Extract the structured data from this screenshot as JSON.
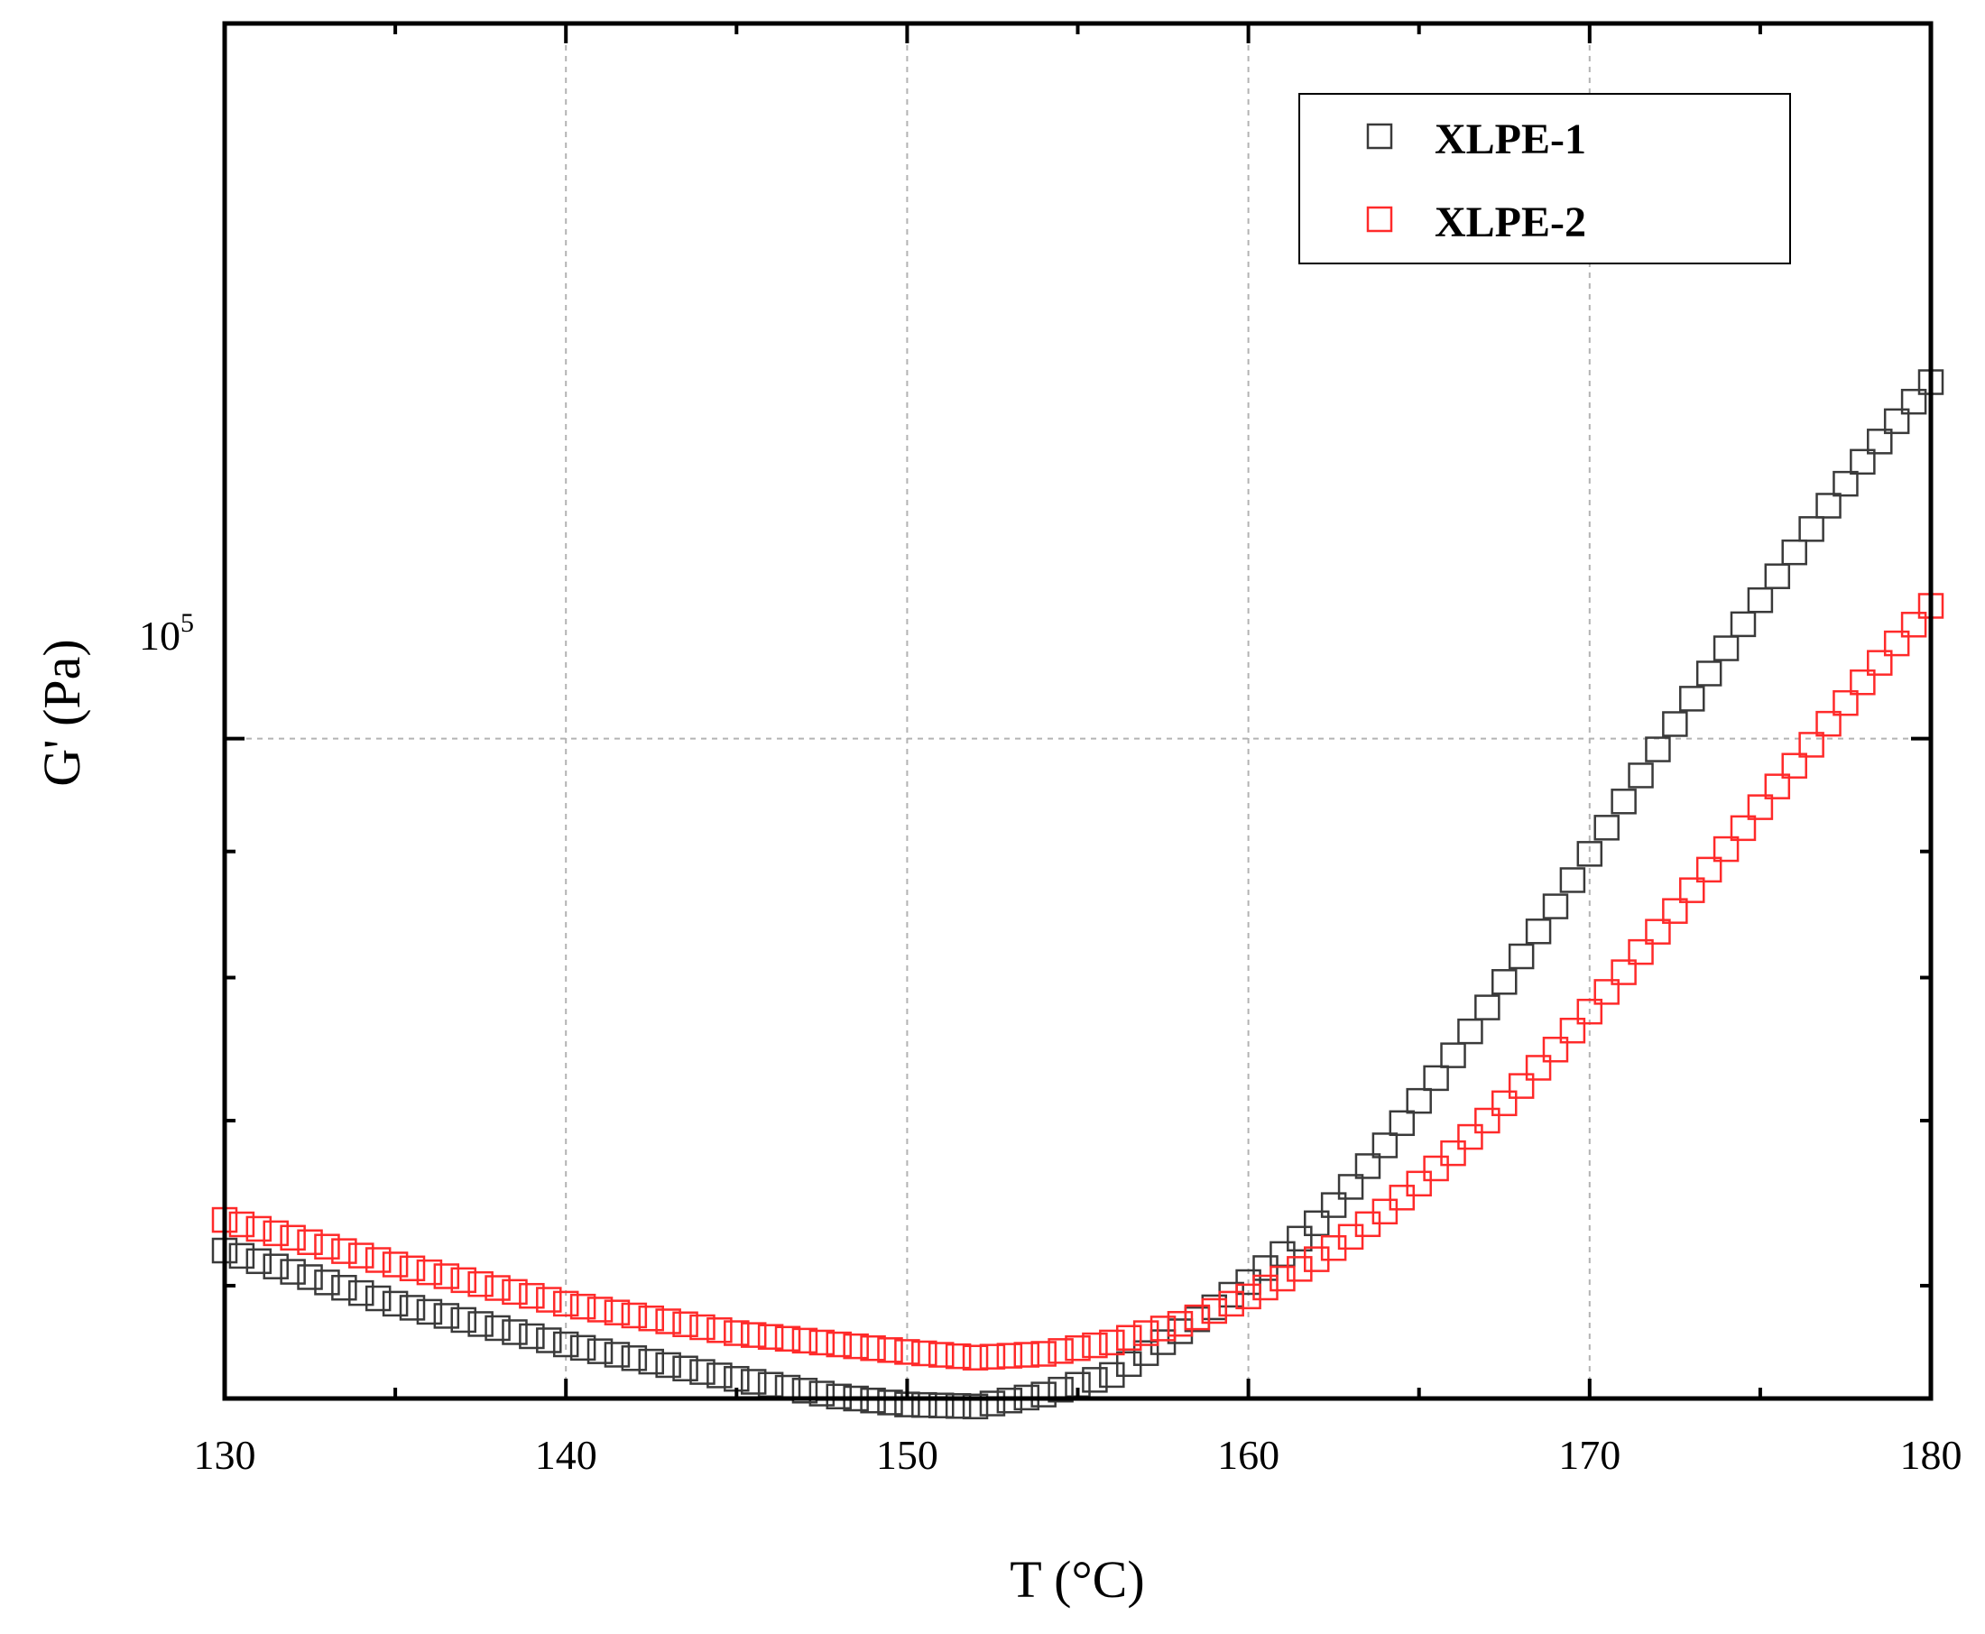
{
  "chart_data": {
    "type": "scatter",
    "title": "",
    "xlabel": "T (°C)",
    "ylabel": "G' (Pa)",
    "xlim": [
      130,
      180
    ],
    "ylim": [
      54000,
      195000
    ],
    "yscale": "log",
    "x_ticks": [
      "130",
      "140",
      "150",
      "160",
      "170",
      "180"
    ],
    "y_tick_label": {
      "base": "10",
      "exponent": "5"
    },
    "grid": true,
    "legend_position": "top-right",
    "series": [
      {
        "name": "XLPE-1",
        "color": "#3a3a3a",
        "marker": "open-square",
        "points": [
          [
            130,
            62000
          ],
          [
            135,
            59000
          ],
          [
            140,
            56800
          ],
          [
            145,
            55000
          ],
          [
            148,
            54100
          ],
          [
            150,
            53700
          ],
          [
            152,
            53600
          ],
          [
            154,
            54200
          ],
          [
            156,
            55200
          ],
          [
            158,
            57500
          ],
          [
            159,
            58800
          ],
          [
            160,
            60200
          ],
          [
            161,
            61800
          ],
          [
            162,
            63600
          ],
          [
            163,
            65800
          ],
          [
            164,
            68400
          ],
          [
            165,
            71300
          ],
          [
            166,
            74400
          ],
          [
            167,
            77800
          ],
          [
            168,
            81600
          ],
          [
            169,
            85500
          ],
          [
            170,
            89800
          ],
          [
            171,
            94300
          ],
          [
            172,
            99000
          ],
          [
            173,
            103800
          ],
          [
            174,
            108800
          ],
          [
            175,
            113800
          ],
          [
            176,
            119000
          ],
          [
            177,
            124300
          ],
          [
            178,
            129500
          ],
          [
            179,
            134500
          ],
          [
            180,
            139500
          ]
        ]
      },
      {
        "name": "XLPE-2",
        "color": "#ff2a2a",
        "marker": "open-square",
        "points": [
          [
            130,
            63800
          ],
          [
            135,
            61200
          ],
          [
            140,
            59000
          ],
          [
            145,
            57400
          ],
          [
            150,
            56400
          ],
          [
            152,
            56100
          ],
          [
            154,
            56300
          ],
          [
            156,
            56900
          ],
          [
            158,
            57900
          ],
          [
            159,
            58600
          ],
          [
            160,
            59400
          ],
          [
            161,
            60400
          ],
          [
            162,
            61500
          ],
          [
            163,
            62800
          ],
          [
            164,
            64300
          ],
          [
            165,
            66000
          ],
          [
            166,
            67900
          ],
          [
            167,
            70000
          ],
          [
            168,
            72300
          ],
          [
            169,
            74800
          ],
          [
            170,
            77500
          ],
          [
            171,
            80400
          ],
          [
            172,
            83500
          ],
          [
            173,
            86800
          ],
          [
            174,
            90200
          ],
          [
            175,
            93800
          ],
          [
            176,
            97500
          ],
          [
            177,
            101400
          ],
          [
            178,
            105400
          ],
          [
            179,
            109300
          ],
          [
            180,
            113200
          ]
        ]
      }
    ]
  }
}
